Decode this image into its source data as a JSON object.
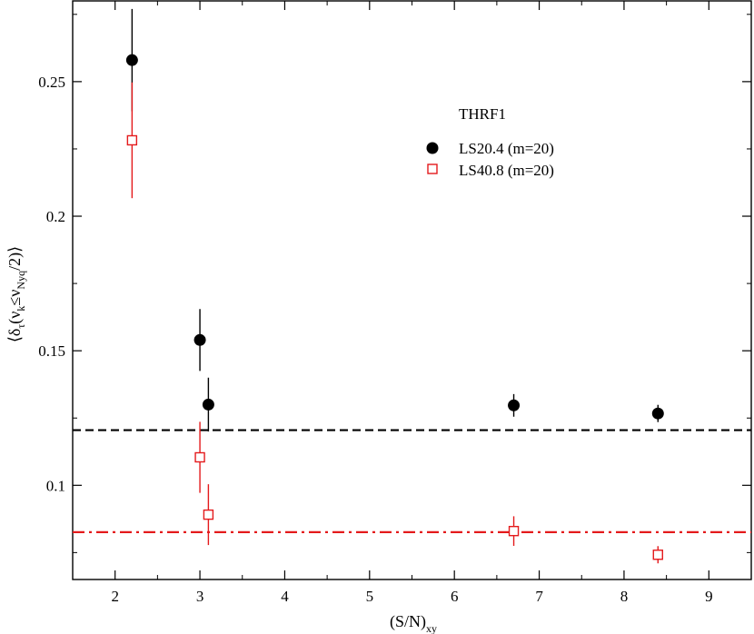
{
  "chart_data": {
    "type": "scatter",
    "title": "",
    "xlabel": {
      "main": "(S/N)",
      "sub": "xy"
    },
    "ylabel": {
      "open": "⟨δ",
      "tau": "τ",
      "mid1": "(ν",
      "k": "k",
      "mid2": "≤ν",
      "nyq": "Nyq",
      "close": "/2)⟩"
    },
    "xlim": [
      1.5,
      9.5
    ],
    "ylim": [
      0.065,
      0.28
    ],
    "x_ticks": [
      2,
      3,
      4,
      5,
      6,
      7,
      8,
      9
    ],
    "x_tick_labels": [
      "2",
      "3",
      "4",
      "5",
      "6",
      "7",
      "8",
      "9"
    ],
    "y_ticks": [
      0.1,
      0.15,
      0.2,
      0.25
    ],
    "y_tick_labels": [
      "0.1",
      "0.15",
      "0.2",
      "0.25"
    ],
    "legend": {
      "title": "THRF1",
      "placement": "top-center-right"
    },
    "series": [
      {
        "name": "LS20.4 (m=20)",
        "marker": "filled-circle",
        "color": "#000000",
        "points": [
          {
            "x": 2.2,
            "y": 0.258,
            "err": 0.019
          },
          {
            "x": 3.0,
            "y": 0.154,
            "err": 0.0115
          },
          {
            "x": 3.1,
            "y": 0.13,
            "err": 0.01
          },
          {
            "x": 6.7,
            "y": 0.1297,
            "err": 0.0042
          },
          {
            "x": 8.4,
            "y": 0.1267,
            "err": 0.0032
          }
        ]
      },
      {
        "name": "LS40.8 (m=20)",
        "marker": "open-square",
        "color": "#e41a1c",
        "points": [
          {
            "x": 2.2,
            "y": 0.2282,
            "err": 0.0215
          },
          {
            "x": 3.0,
            "y": 0.1104,
            "err": 0.0132
          },
          {
            "x": 3.1,
            "y": 0.0891,
            "err": 0.0113
          },
          {
            "x": 6.7,
            "y": 0.083,
            "err": 0.0055
          },
          {
            "x": 8.4,
            "y": 0.0742,
            "err": 0.0032
          }
        ]
      }
    ],
    "reference_lines": [
      {
        "y": 0.1205,
        "style": "dashed",
        "color": "#000000"
      },
      {
        "y": 0.0826,
        "style": "dash-dot",
        "color": "#e41a1c"
      }
    ]
  }
}
